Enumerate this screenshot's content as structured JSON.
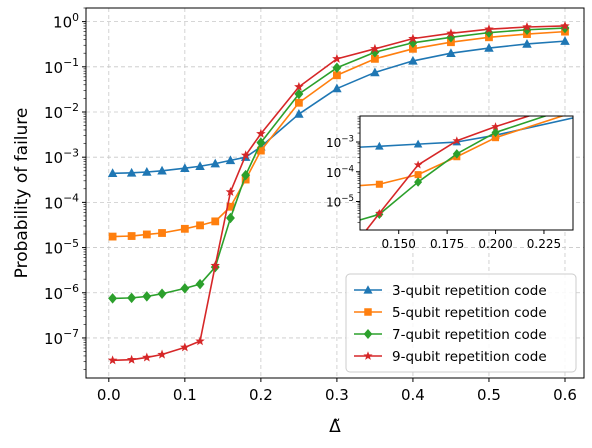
{
  "chart_data": [
    {
      "type": "line",
      "panel": "main",
      "title": "",
      "xlabel": "Δ̃",
      "ylabel": "Probability of failure",
      "xlim": [
        -0.03,
        0.625
      ],
      "ylim": [
        1.3e-08,
        2.0
      ],
      "yscale": "log",
      "grid": true,
      "legend_position": "lower-right",
      "x_ticks": [
        0.0,
        0.1,
        0.2,
        0.3,
        0.4,
        0.5,
        0.6
      ],
      "x_tick_labels": [
        "0.0",
        "0.1",
        "0.2",
        "0.3",
        "0.4",
        "0.5",
        "0.6"
      ],
      "y_ticks": [
        1e-07,
        1e-06,
        1e-05,
        0.0001,
        0.001,
        0.01,
        0.1,
        1
      ],
      "y_tick_labels": [
        {
          "base": "10",
          "exp": "−7"
        },
        {
          "base": "10",
          "exp": "−6"
        },
        {
          "base": "10",
          "exp": "−5"
        },
        {
          "base": "10",
          "exp": "−4"
        },
        {
          "base": "10",
          "exp": "−3"
        },
        {
          "base": "10",
          "exp": "−2"
        },
        {
          "base": "10",
          "exp": "−1"
        },
        {
          "base": "10",
          "exp": "0"
        }
      ],
      "series": [
        {
          "name": "3-qubit repetition code",
          "color": "#1f77b4",
          "marker": "triangle",
          "x": [
            0.005,
            0.03,
            0.05,
            0.07,
            0.1,
            0.12,
            0.14,
            0.16,
            0.18,
            0.2,
            0.25,
            0.3,
            0.35,
            0.4,
            0.45,
            0.5,
            0.55,
            0.6
          ],
          "y": [
            0.00044,
            0.00045,
            0.00047,
            0.0005,
            0.00057,
            0.00063,
            0.00072,
            0.00085,
            0.001,
            0.0017,
            0.009,
            0.033,
            0.075,
            0.135,
            0.2,
            0.26,
            0.32,
            0.37
          ]
        },
        {
          "name": "5-qubit repetition code",
          "color": "#ff7f0e",
          "marker": "square",
          "x": [
            0.005,
            0.03,
            0.05,
            0.07,
            0.1,
            0.12,
            0.14,
            0.16,
            0.18,
            0.2,
            0.25,
            0.3,
            0.35,
            0.4,
            0.45,
            0.5,
            0.55,
            0.6
          ],
          "y": [
            1.75e-05,
            1.8e-05,
            1.95e-05,
            2.1e-05,
            2.6e-05,
            3.1e-05,
            3.8e-05,
            8e-05,
            0.00032,
            0.0014,
            0.016,
            0.065,
            0.15,
            0.25,
            0.35,
            0.45,
            0.53,
            0.6
          ]
        },
        {
          "name": "7-qubit repetition code",
          "color": "#2ca02c",
          "marker": "diamond",
          "x": [
            0.005,
            0.03,
            0.05,
            0.07,
            0.1,
            0.12,
            0.14,
            0.16,
            0.18,
            0.2,
            0.25,
            0.3,
            0.35,
            0.4,
            0.45,
            0.5,
            0.55,
            0.6
          ],
          "y": [
            7.5e-07,
            7.7e-07,
            8.3e-07,
            9.5e-07,
            1.25e-06,
            1.55e-06,
            3.7e-06,
            4.5e-05,
            0.0004,
            0.0021,
            0.025,
            0.095,
            0.21,
            0.34,
            0.45,
            0.57,
            0.66,
            0.72
          ]
        },
        {
          "name": "9-qubit repetition code",
          "color": "#d62728",
          "marker": "star",
          "x": [
            0.005,
            0.03,
            0.05,
            0.07,
            0.1,
            0.12,
            0.14,
            0.16,
            0.18,
            0.2,
            0.25,
            0.3,
            0.35,
            0.4,
            0.45,
            0.5,
            0.55,
            0.6
          ],
          "y": [
            3.2e-08,
            3.3e-08,
            3.7e-08,
            4.3e-08,
            6.2e-08,
            8.5e-08,
            4e-06,
            0.00017,
            0.0011,
            0.0033,
            0.036,
            0.15,
            0.25,
            0.42,
            0.55,
            0.68,
            0.76,
            0.8
          ]
        }
      ]
    },
    {
      "type": "line",
      "panel": "inset",
      "xlim": [
        0.13,
        0.24
      ],
      "ylim": [
        1.1e-06,
        0.0075
      ],
      "yscale": "log",
      "grid": false,
      "x_ticks": [
        0.15,
        0.175,
        0.2,
        0.225
      ],
      "x_tick_labels": [
        "0.150",
        "0.175",
        "0.200",
        "0.225"
      ],
      "y_ticks": [
        1e-05,
        0.0001,
        0.001
      ],
      "y_tick_labels": [
        {
          "base": "10",
          "exp": "−5"
        },
        {
          "base": "10",
          "exp": "−4"
        },
        {
          "base": "10",
          "exp": "−3"
        }
      ]
    }
  ]
}
